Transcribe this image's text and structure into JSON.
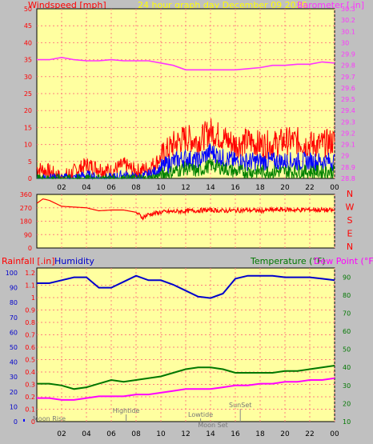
{
  "header": {
    "left_title": "Windspeed [mph]",
    "center_title": "24 hour graph day   December 09 2020",
    "right_title": "Barometer [.in]"
  },
  "colors": {
    "background": "#c0c0c0",
    "plot_bg": "#ffffa0",
    "grid": "#ff8080",
    "barometer": "#ff33ff",
    "wind_gust": "#ff0000",
    "wind_avg": "#0000ff",
    "wind_min": "#008000",
    "direction": "#ff0000",
    "humidity": "#0000cc",
    "temperature": "#007700",
    "dew_point": "#ff00ff",
    "rain": "#0000ff",
    "red_label": "#ff0000",
    "green_label": "#007700",
    "blue_label": "#0000cc",
    "yellow_label": "#ffff00"
  },
  "time_ticks": [
    "02",
    "04",
    "06",
    "08",
    "10",
    "12",
    "14",
    "16",
    "18",
    "20",
    "22",
    "00"
  ],
  "chart_data": [
    {
      "type": "line",
      "x_unit": "hour",
      "xlim": [
        0,
        24
      ],
      "left_axis": {
        "label": "Windspeed [mph]",
        "ylim": [
          0,
          50
        ],
        "ticks": [
          "50",
          "45",
          "40",
          "35",
          "30",
          "25",
          "20",
          "15",
          "10",
          "5",
          "0"
        ]
      },
      "right_axis": {
        "label": "Barometer [.in]",
        "ylim": [
          28.8,
          30.3
        ],
        "ticks": [
          "30.3",
          "30.2",
          "30.1",
          "30",
          "29.9",
          "29.8",
          "29.7",
          "29.6",
          "29.5",
          "29.4",
          "29.3",
          "29.2",
          "29.1",
          "29",
          "28.9",
          "28.8"
        ]
      },
      "series": [
        {
          "name": "Barometer",
          "axis": "right",
          "x": [
            0,
            1,
            2,
            3,
            4,
            5,
            6,
            7,
            8,
            9,
            10,
            11,
            12,
            13,
            14,
            15,
            16,
            17,
            18,
            19,
            20,
            21,
            22,
            23,
            24
          ],
          "y": [
            29.85,
            29.85,
            29.87,
            29.85,
            29.84,
            29.84,
            29.85,
            29.84,
            29.84,
            29.84,
            29.82,
            29.8,
            29.76,
            29.76,
            29.76,
            29.76,
            29.76,
            29.77,
            29.78,
            29.8,
            29.8,
            29.81,
            29.81,
            29.83,
            29.82
          ]
        },
        {
          "axis": "left",
          "x": [
            0,
            1,
            2,
            3,
            4,
            5,
            6,
            7,
            8,
            9,
            10,
            11,
            12,
            13,
            14,
            15,
            16,
            17,
            18,
            19,
            20,
            21,
            22,
            23,
            24
          ],
          "y": [
            3,
            2,
            0,
            2,
            4,
            3,
            2,
            4,
            2,
            3,
            6,
            10,
            12,
            11,
            14,
            12,
            10,
            11,
            10,
            10,
            11,
            11,
            10,
            10,
            11
          ]
        },
        {
          "axis": "left",
          "x": [
            0,
            1,
            2,
            3,
            4,
            5,
            6,
            7,
            8,
            9,
            10,
            11,
            12,
            13,
            14,
            15,
            16,
            17,
            18,
            19,
            20,
            21,
            22,
            23,
            24
          ],
          "y": [
            0,
            0,
            0,
            0,
            1,
            0,
            0,
            1,
            0,
            1,
            3,
            5,
            6,
            5,
            8,
            6,
            5,
            5,
            5,
            5,
            5,
            5,
            5,
            5,
            5
          ]
        },
        {
          "axis": "left",
          "x": [
            0,
            1,
            2,
            3,
            4,
            5,
            6,
            7,
            8,
            9,
            10,
            11,
            12,
            13,
            14,
            15,
            16,
            17,
            18,
            19,
            20,
            21,
            22,
            23,
            24
          ],
          "y": [
            0,
            0,
            0,
            0,
            0,
            0,
            0,
            0,
            0,
            0,
            1,
            2,
            3,
            2,
            4,
            3,
            2,
            2,
            2,
            2,
            2,
            2,
            2,
            2,
            2
          ]
        }
      ]
    },
    {
      "type": "line",
      "x_unit": "hour",
      "xlim": [
        0,
        24
      ],
      "left_axis": {
        "ylim": [
          0,
          360
        ],
        "ticks": [
          "360",
          "270",
          "180",
          "90",
          "0"
        ]
      },
      "right_labels": [
        "N",
        "W",
        "S",
        "E",
        "N"
      ],
      "series": [
        {
          "axis": "left",
          "x": [
            0,
            0.5,
            1,
            2,
            3,
            4,
            5,
            6,
            7,
            8,
            8.5,
            9,
            10,
            11,
            12,
            13,
            14,
            15,
            16,
            17,
            18,
            19,
            20,
            21,
            22,
            23,
            24
          ],
          "y": [
            300,
            330,
            320,
            280,
            275,
            270,
            250,
            255,
            255,
            240,
            205,
            225,
            240,
            245,
            248,
            252,
            255,
            250,
            252,
            255,
            250,
            255,
            258,
            255,
            258,
            255,
            252
          ]
        }
      ]
    },
    {
      "type": "line",
      "x_unit": "hour",
      "xlim": [
        0,
        24
      ],
      "left_axis_1": {
        "label": "Rainfall [.in]",
        "ylim": [
          0,
          1.2
        ],
        "ticks": [
          "1.2",
          "1.1",
          "1",
          "0.9",
          "0.8",
          "0.7",
          "0.6",
          "0.5",
          "0.4",
          "0.3",
          "0.2",
          "0.1",
          "0"
        ]
      },
      "left_axis_2": {
        "label": "Humidity",
        "ylim": [
          0,
          100
        ],
        "ticks": [
          "100",
          "90",
          "80",
          "70",
          "60",
          "50",
          "40",
          "30",
          "20",
          "10",
          "0"
        ]
      },
      "right_axis": {
        "label_left": "Temperature (°F)",
        "label_right": "Dew Point (°F)",
        "ylim": [
          10,
          95
        ],
        "ticks": [
          "90",
          "80",
          "70",
          "60",
          "50",
          "40",
          "30",
          "20",
          "10"
        ]
      },
      "series": [
        {
          "name": "Humidity",
          "axis": "humidity",
          "x": [
            0,
            1,
            2,
            3,
            4,
            5,
            6,
            7,
            8,
            9,
            10,
            11,
            12,
            13,
            14,
            15,
            16,
            17,
            18,
            19,
            20,
            21,
            22,
            23,
            24
          ],
          "y": [
            93,
            93,
            95,
            97,
            97,
            90,
            90,
            94,
            98,
            95,
            95,
            92,
            88,
            84,
            83,
            86,
            96,
            98,
            98,
            98,
            97,
            97,
            97,
            96,
            95
          ]
        },
        {
          "name": "Temperature (°F)",
          "axis": "right",
          "x": [
            0,
            1,
            2,
            3,
            4,
            5,
            6,
            7,
            8,
            9,
            10,
            11,
            12,
            13,
            14,
            15,
            16,
            17,
            18,
            19,
            20,
            21,
            22,
            23,
            24
          ],
          "y": [
            31,
            31,
            30,
            28,
            29,
            31,
            33,
            32,
            33,
            34,
            35,
            37,
            39,
            40,
            40,
            39,
            37,
            37,
            37,
            37,
            38,
            38,
            39,
            40,
            41
          ]
        },
        {
          "name": "Dew Point (°F)",
          "axis": "right",
          "x": [
            0,
            1,
            2,
            3,
            4,
            5,
            6,
            7,
            8,
            9,
            10,
            11,
            12,
            13,
            14,
            15,
            16,
            17,
            18,
            19,
            20,
            21,
            22,
            23,
            24
          ],
          "y": [
            23,
            23,
            22,
            22,
            23,
            24,
            24,
            24,
            25,
            25,
            26,
            27,
            28,
            28,
            28,
            29,
            30,
            30,
            31,
            31,
            32,
            32,
            33,
            33,
            34
          ]
        }
      ]
    }
  ],
  "astro": [
    {
      "label": "Moon Rise",
      "hour": 1.0,
      "row": "bottom"
    },
    {
      "label": "Hightide",
      "hour": 7.2,
      "row": "top"
    },
    {
      "label": "Lowtide",
      "hour": 13.2,
      "row": "mid"
    },
    {
      "label": "Moon Set",
      "hour": 14.2,
      "row": "bottom"
    },
    {
      "label": "SunSet",
      "hour": 16.4,
      "row": "upper"
    }
  ]
}
